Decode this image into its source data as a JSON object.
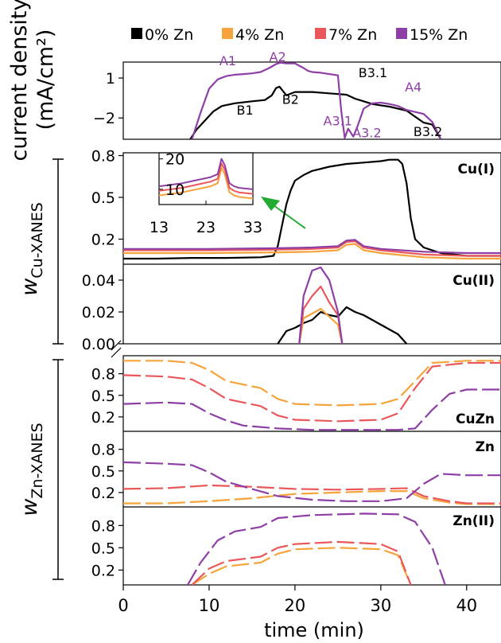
{
  "chart_data": {
    "type": "line",
    "xlabel": "time (min)",
    "xlim": [
      0,
      44
    ],
    "xticks": [
      "0",
      "10",
      "20",
      "30",
      "40"
    ],
    "xtick_values": [
      0,
      10,
      20,
      30,
      40
    ],
    "legend": {
      "placement": "top",
      "entries": [
        {
          "label": "0% Zn",
          "color": "#000000"
        },
        {
          "label": "4% Zn",
          "color": "#f5a33a"
        },
        {
          "label": "7% Zn",
          "color": "#e9575a"
        },
        {
          "label": "15% Zn",
          "color": "#8e3fa5"
        }
      ]
    },
    "ylabel_top_line1": "current density",
    "ylabel_top_line2": "(mA/cm²)",
    "ylabel_cu_main": "w",
    "ylabel_cu_sub": "Cu-XANES",
    "ylabel_zn_main": "w",
    "ylabel_zn_sub": "Zn-XANES",
    "panels": [
      {
        "id": "current",
        "ylim": [
          -3.6,
          2.2
        ],
        "yticks": [
          1,
          -2
        ],
        "yticklabels": [
          "1",
          "−2"
        ],
        "annotations": [
          {
            "text": "A1",
            "x": 11.2,
            "y": 1.95,
            "color": "#8e3fa5"
          },
          {
            "text": "A2",
            "x": 17.0,
            "y": 2.25,
            "color": "#8e3fa5"
          },
          {
            "text": "B1",
            "x": 13.2,
            "y": -1.75,
            "color": "#000000"
          },
          {
            "text": "B2",
            "x": 18.5,
            "y": -0.95,
            "color": "#000000"
          },
          {
            "text": "B3.1",
            "x": 27.4,
            "y": 1.05,
            "color": "#000000"
          },
          {
            "text": "A3.1",
            "x": 23.3,
            "y": -2.55,
            "color": "#8e3fa5"
          },
          {
            "text": "A3.2",
            "x": 26.7,
            "y": -3.45,
            "color": "#8e3fa5"
          },
          {
            "text": "B3.2",
            "x": 33.8,
            "y": -3.35,
            "color": "#000000"
          },
          {
            "text": "A4",
            "x": 32.8,
            "y": 0.0,
            "color": "#8e3fa5"
          }
        ],
        "series": [
          {
            "color": "#000000",
            "x": [
              7.8,
              8.5,
              9.5,
              10.5,
              11.5,
              13,
              15,
              16.5,
              17.3,
              17.8,
              18.2,
              19,
              20,
              22,
              24,
              26,
              27,
              28,
              29,
              30,
              31,
              32,
              33,
              34,
              35,
              36,
              37
            ],
            "y": [
              -3.6,
              -2.9,
              -2.2,
              -1.5,
              -1.1,
              -0.9,
              -0.75,
              -0.65,
              -0.3,
              0.25,
              0.35,
              -0.3,
              -0.05,
              -0.05,
              -0.15,
              -0.25,
              -0.55,
              -0.75,
              -0.95,
              -1.05,
              -1.15,
              -1.3,
              -1.45,
              -1.9,
              -2.35,
              -2.5,
              -3.6
            ]
          },
          {
            "color": "#8e3fa5",
            "x": [
              8.0,
              9,
              10,
              11,
              12,
              13,
              14,
              15,
              16,
              17,
              17.8,
              18.3,
              19,
              20,
              21,
              21.5,
              22,
              23,
              24,
              25,
              25.4,
              25.8,
              26.2,
              26.8,
              27.3,
              28,
              29,
              30,
              31,
              32,
              33,
              34,
              35,
              36,
              37
            ],
            "y": [
              -3.6,
              -1.6,
              0.2,
              0.9,
              1.15,
              1.25,
              1.3,
              1.35,
              1.45,
              1.75,
              2.05,
              2.15,
              2.1,
              2.1,
              1.75,
              1.55,
              1.45,
              1.4,
              1.3,
              1.2,
              -1.5,
              -3.5,
              -2.8,
              -3.4,
              -2.6,
              -1.3,
              -0.9,
              -0.85,
              -0.95,
              -1.1,
              -1.4,
              -1.55,
              -1.7,
              -2.3,
              -3.6
            ]
          }
        ]
      },
      {
        "id": "cu1",
        "label": "Cu(I)",
        "ylim": [
          0.02,
          0.82
        ],
        "yticks": [
          0.8,
          0.5,
          0.2
        ],
        "yticklabels": [
          "0.8",
          "0.5",
          "0.2"
        ],
        "series": [
          {
            "name": "0% Zn",
            "color": "#000000",
            "x": [
              0,
              4,
              8,
              12,
              16,
              17.5,
              18,
              18.5,
              19,
              19.5,
              20,
              21,
              22,
              24,
              26,
              28,
              30,
              31,
              32,
              32.5,
              33,
              33.5,
              34,
              35,
              37,
              40,
              44
            ],
            "y": [
              0.06,
              0.06,
              0.065,
              0.065,
              0.07,
              0.08,
              0.15,
              0.3,
              0.45,
              0.55,
              0.62,
              0.66,
              0.69,
              0.72,
              0.74,
              0.75,
              0.76,
              0.77,
              0.77,
              0.74,
              0.6,
              0.35,
              0.2,
              0.14,
              0.1,
              0.08,
              0.08
            ]
          },
          {
            "name": "4% Zn",
            "color": "#f5a33a",
            "x": [
              0,
              10,
              18,
              22,
              25,
              26,
              27,
              28,
              30,
              35,
              40,
              44
            ],
            "y": [
              0.1,
              0.1,
              0.105,
              0.11,
              0.12,
              0.16,
              0.165,
              0.12,
              0.1,
              0.07,
              0.06,
              0.06
            ]
          },
          {
            "name": "7% Zn",
            "color": "#e9575a",
            "x": [
              0,
              10,
              18,
              22,
              25,
              26,
              27,
              28,
              30,
              35,
              40,
              44
            ],
            "y": [
              0.12,
              0.12,
              0.125,
              0.13,
              0.14,
              0.18,
              0.185,
              0.14,
              0.12,
              0.09,
              0.08,
              0.08
            ]
          },
          {
            "name": "15% Zn",
            "color": "#8e3fa5",
            "x": [
              0,
              10,
              18,
              22,
              25,
              26,
              27,
              28,
              30,
              35,
              40,
              44
            ],
            "y": [
              0.13,
              0.13,
              0.135,
              0.14,
              0.15,
              0.19,
              0.195,
              0.15,
              0.13,
              0.11,
              0.1,
              0.1
            ]
          }
        ],
        "inset": {
          "xlim": [
            13,
            33
          ],
          "ylim": [
            5,
            22
          ],
          "xticks": [
            13,
            23,
            33
          ],
          "xticklabels": [
            "13",
            "23",
            "33"
          ],
          "yticks": [
            20,
            10
          ],
          "yticklabels": [
            "20",
            "10"
          ],
          "series": [
            {
              "name": "4% Zn",
              "color": "#f5a33a",
              "x": [
                13,
                18,
                21,
                24,
                25.5,
                26.3,
                27,
                28,
                29,
                30,
                33
              ],
              "y": [
                8,
                9,
                10,
                11,
                12,
                17,
                15,
                9,
                8,
                7.5,
                7
              ]
            },
            {
              "name": "7% Zn",
              "color": "#e9575a",
              "x": [
                13,
                18,
                21,
                24,
                25.5,
                26.3,
                27,
                28,
                29,
                30,
                33
              ],
              "y": [
                9.5,
                10.5,
                11.5,
                12.5,
                13.5,
                18.5,
                16.5,
                10.5,
                9.5,
                9,
                8.5
              ]
            },
            {
              "name": "15% Zn",
              "color": "#8e3fa5",
              "x": [
                13,
                18,
                21,
                24,
                25.5,
                26.3,
                27,
                28,
                29,
                30,
                33
              ],
              "y": [
                11,
                12,
                13,
                14,
                15,
                20,
                18,
                12,
                11,
                10.5,
                10
              ]
            }
          ]
        }
      },
      {
        "id": "cu2",
        "label": "Cu(II)",
        "ylim": [
          0,
          0.05
        ],
        "yticks": [
          0.04,
          0.02,
          0.0
        ],
        "yticklabels": [
          "0.04",
          "0.02",
          "0.00"
        ],
        "series": [
          {
            "name": "0% Zn",
            "color": "#000000",
            "x": [
              18,
              19,
              20,
              21,
              22,
              23,
              24,
              25,
              26,
              27,
              28,
              29,
              30,
              31,
              32,
              33
            ],
            "y": [
              0,
              0.008,
              0.01,
              0.013,
              0.015,
              0.02,
              0.018,
              0.017,
              0.023,
              0.02,
              0.018,
              0.015,
              0.012,
              0.009,
              0.006,
              0
            ]
          },
          {
            "name": "4% Zn",
            "color": "#f5a33a",
            "x": [
              20.5,
              21,
              22,
              23,
              24,
              25,
              25.5
            ],
            "y": [
              0,
              0.016,
              0.019,
              0.022,
              0.017,
              0.012,
              0
            ]
          },
          {
            "name": "7% Zn",
            "color": "#e9575a",
            "x": [
              20.5,
              21,
              22,
              23,
              24,
              25,
              25.5
            ],
            "y": [
              0,
              0.022,
              0.03,
              0.036,
              0.026,
              0.018,
              0
            ]
          },
          {
            "name": "15% Zn",
            "color": "#8e3fa5",
            "x": [
              20.5,
              21,
              22,
              23,
              24,
              25,
              25.5
            ],
            "y": [
              0,
              0.03,
              0.046,
              0.048,
              0.04,
              0.02,
              0
            ]
          }
        ]
      },
      {
        "id": "cuzn",
        "label": "CuZn",
        "ylim": [
          0,
          1.05
        ],
        "yticks": [
          0.8,
          0.5,
          0.2
        ],
        "yticklabels": [
          "0.8",
          "0.5",
          "0.2"
        ],
        "series": [
          {
            "name": "4% Zn",
            "color": "#f5a33a",
            "x": [
              0,
              5,
              8,
              10,
              12,
              16,
              18,
              20,
              25,
              30,
              32,
              34,
              36,
              40,
              44
            ],
            "y": [
              0.98,
              0.98,
              0.95,
              0.85,
              0.7,
              0.6,
              0.45,
              0.38,
              0.36,
              0.38,
              0.45,
              0.7,
              0.95,
              0.98,
              0.98
            ]
          },
          {
            "name": "7% Zn",
            "color": "#e9575a",
            "x": [
              0,
              5,
              8,
              10,
              12,
              16,
              18,
              20,
              25,
              30,
              32,
              34,
              36,
              40,
              44
            ],
            "y": [
              0.78,
              0.76,
              0.72,
              0.6,
              0.45,
              0.35,
              0.22,
              0.16,
              0.14,
              0.16,
              0.25,
              0.6,
              0.9,
              0.95,
              0.95
            ]
          },
          {
            "name": "15% Zn",
            "color": "#8e3fa5",
            "x": [
              0,
              5,
              8,
              10,
              12,
              14,
              18,
              22,
              28,
              32,
              34,
              36,
              38,
              40,
              44
            ],
            "y": [
              0.38,
              0.4,
              0.38,
              0.25,
              0.15,
              0.08,
              0.04,
              0.02,
              0.02,
              0.02,
              0.04,
              0.3,
              0.52,
              0.58,
              0.58
            ]
          }
        ]
      },
      {
        "id": "zn",
        "label": "Zn",
        "ylim": [
          0,
          1.05
        ],
        "yticks": [
          0.8,
          0.5,
          0.2
        ],
        "yticklabels": [
          "0.8",
          "0.5",
          "0.2"
        ],
        "series": [
          {
            "name": "4% Zn",
            "color": "#f5a33a",
            "x": [
              0,
              5,
              10,
              15,
              20,
              25,
              30,
              33,
              35,
              38,
              40,
              44
            ],
            "y": [
              0.05,
              0.05,
              0.08,
              0.12,
              0.18,
              0.2,
              0.22,
              0.22,
              0.12,
              0.06,
              0.04,
              0.04
            ]
          },
          {
            "name": "7% Zn",
            "color": "#e9575a",
            "x": [
              0,
              5,
              10,
              15,
              20,
              25,
              30,
              33,
              35,
              38,
              40,
              44
            ],
            "y": [
              0.25,
              0.26,
              0.3,
              0.28,
              0.25,
              0.24,
              0.25,
              0.26,
              0.15,
              0.08,
              0.05,
              0.05
            ]
          },
          {
            "name": "15% Zn",
            "color": "#8e3fa5",
            "x": [
              0,
              5,
              8,
              10,
              12,
              15,
              18,
              22,
              26,
              30,
              33,
              35,
              37,
              40,
              44
            ],
            "y": [
              0.62,
              0.6,
              0.58,
              0.48,
              0.35,
              0.25,
              0.15,
              0.1,
              0.08,
              0.08,
              0.12,
              0.32,
              0.46,
              0.44,
              0.44
            ]
          }
        ]
      },
      {
        "id": "zn2",
        "label": "Zn(II)",
        "ylim": [
          0,
          1.05
        ],
        "yticks": [
          0.8,
          0.5,
          0.2
        ],
        "yticklabels": [
          "0.8",
          "0.5",
          "0.2"
        ],
        "series": [
          {
            "name": "4% Zn",
            "color": "#f5a33a",
            "x": [
              8,
              10,
              12,
              16,
              18,
              20,
              25,
              30,
              32,
              33.5
            ],
            "y": [
              0,
              0.15,
              0.25,
              0.3,
              0.42,
              0.48,
              0.5,
              0.48,
              0.4,
              0
            ]
          },
          {
            "name": "7% Zn",
            "color": "#e9575a",
            "x": [
              8,
              10,
              12,
              16,
              18,
              20,
              25,
              30,
              32,
              33.5
            ],
            "y": [
              0,
              0.22,
              0.32,
              0.38,
              0.5,
              0.55,
              0.58,
              0.55,
              0.45,
              0
            ]
          },
          {
            "name": "15% Zn",
            "color": "#8e3fa5",
            "x": [
              7.5,
              9,
              11,
              13,
              16,
              18,
              22,
              28,
              32,
              34,
              36,
              37.5
            ],
            "y": [
              0,
              0.3,
              0.6,
              0.72,
              0.78,
              0.9,
              0.94,
              0.96,
              0.95,
              0.85,
              0.5,
              0
            ]
          }
        ]
      }
    ]
  }
}
